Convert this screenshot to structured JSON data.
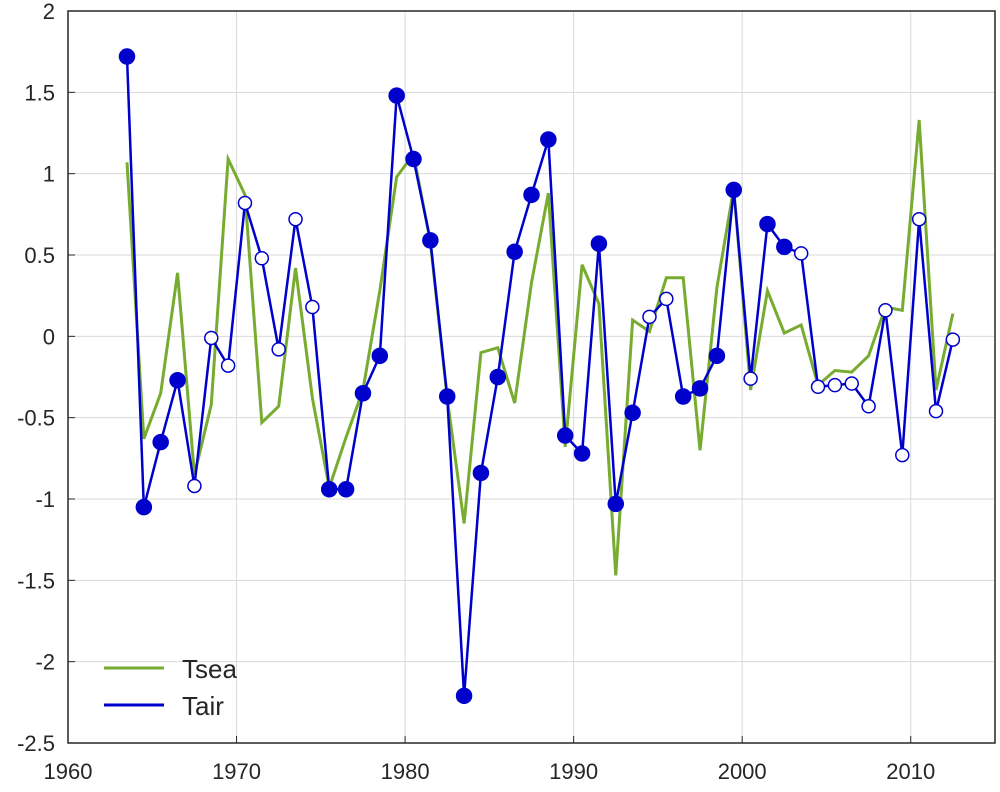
{
  "chart_data": {
    "type": "line",
    "title": "",
    "xlabel": "",
    "ylabel": "",
    "xlim": [
      1960,
      2015
    ],
    "ylim": [
      -2.5,
      2
    ],
    "xticks": [
      1960,
      1970,
      1980,
      1990,
      2000,
      2010
    ],
    "xtick_labels": [
      "1960",
      "1970",
      "1980",
      "1990",
      "2000",
      "2010"
    ],
    "yticks": [
      2,
      1.5,
      1,
      0.5,
      0,
      -0.5,
      -1,
      -1.5,
      -2,
      -2.5
    ],
    "ytick_labels": [
      "2",
      "1.5",
      "1",
      "0.5",
      "0",
      "-0.5",
      "-1",
      "-1.5",
      "-2",
      "-2.5"
    ],
    "grid": true,
    "legend_position": "bottom-left",
    "x": [
      1963.5,
      1964.5,
      1965.5,
      1966.5,
      1967.5,
      1968.5,
      1969.5,
      1970.5,
      1971.5,
      1972.5,
      1973.5,
      1974.5,
      1975.5,
      1976.5,
      1977.5,
      1978.5,
      1979.5,
      1980.5,
      1981.5,
      1982.5,
      1983.5,
      1984.5,
      1985.5,
      1986.5,
      1987.5,
      1988.5,
      1989.5,
      1990.5,
      1991.5,
      1992.5,
      1993.5,
      1994.5,
      1995.5,
      1996.5,
      1997.5,
      1998.5,
      1999.5,
      2000.5,
      2001.5,
      2002.5,
      2003.5,
      2004.5,
      2005.5,
      2006.5,
      2007.5,
      2008.5,
      2009.5,
      2010.5,
      2011.5,
      2012.5
    ],
    "series": [
      {
        "name": "Tsea",
        "color": "#77ac30",
        "values": [
          1.07,
          -0.63,
          -0.35,
          0.39,
          -0.85,
          -0.42,
          1.09,
          0.87,
          -0.53,
          -0.43,
          0.42,
          -0.38,
          -0.93,
          -0.62,
          -0.33,
          0.28,
          0.98,
          1.12,
          0.58,
          -0.38,
          -1.15,
          -0.1,
          -0.07,
          -0.41,
          0.33,
          0.88,
          -0.68,
          0.44,
          0.2,
          -1.47,
          0.1,
          0.03,
          0.36,
          0.36,
          -0.7,
          0.3,
          0.91,
          -0.33,
          0.28,
          0.02,
          0.07,
          -0.3,
          -0.21,
          -0.22,
          -0.12,
          0.18,
          0.16,
          1.33,
          -0.33,
          0.14
        ]
      },
      {
        "name": "Tair",
        "color": "#0000cd",
        "values": [
          1.72,
          -1.05,
          -0.65,
          -0.27,
          -0.92,
          -0.01,
          -0.18,
          0.82,
          0.48,
          -0.08,
          0.72,
          0.18,
          -0.94,
          -0.94,
          -0.35,
          -0.12,
          1.48,
          1.09,
          0.59,
          -0.37,
          -2.21,
          -0.84,
          -0.25,
          0.52,
          0.87,
          1.21,
          -0.61,
          -0.72,
          0.57,
          -1.03,
          -0.47,
          0.12,
          0.23,
          -0.37,
          -0.32,
          -0.12,
          0.9,
          -0.26,
          0.69,
          0.55,
          0.51,
          -0.31,
          -0.3,
          -0.29,
          -0.43,
          0.16,
          -0.73,
          0.72,
          -0.46,
          -0.02
        ],
        "filled_markers": [
          true,
          true,
          true,
          true,
          false,
          false,
          false,
          false,
          false,
          false,
          false,
          false,
          true,
          true,
          true,
          true,
          true,
          true,
          true,
          true,
          true,
          true,
          true,
          true,
          true,
          true,
          true,
          true,
          true,
          true,
          true,
          false,
          false,
          true,
          true,
          true,
          true,
          false,
          true,
          true,
          false,
          false,
          false,
          false,
          false,
          false,
          false,
          false,
          false,
          false
        ]
      }
    ]
  }
}
